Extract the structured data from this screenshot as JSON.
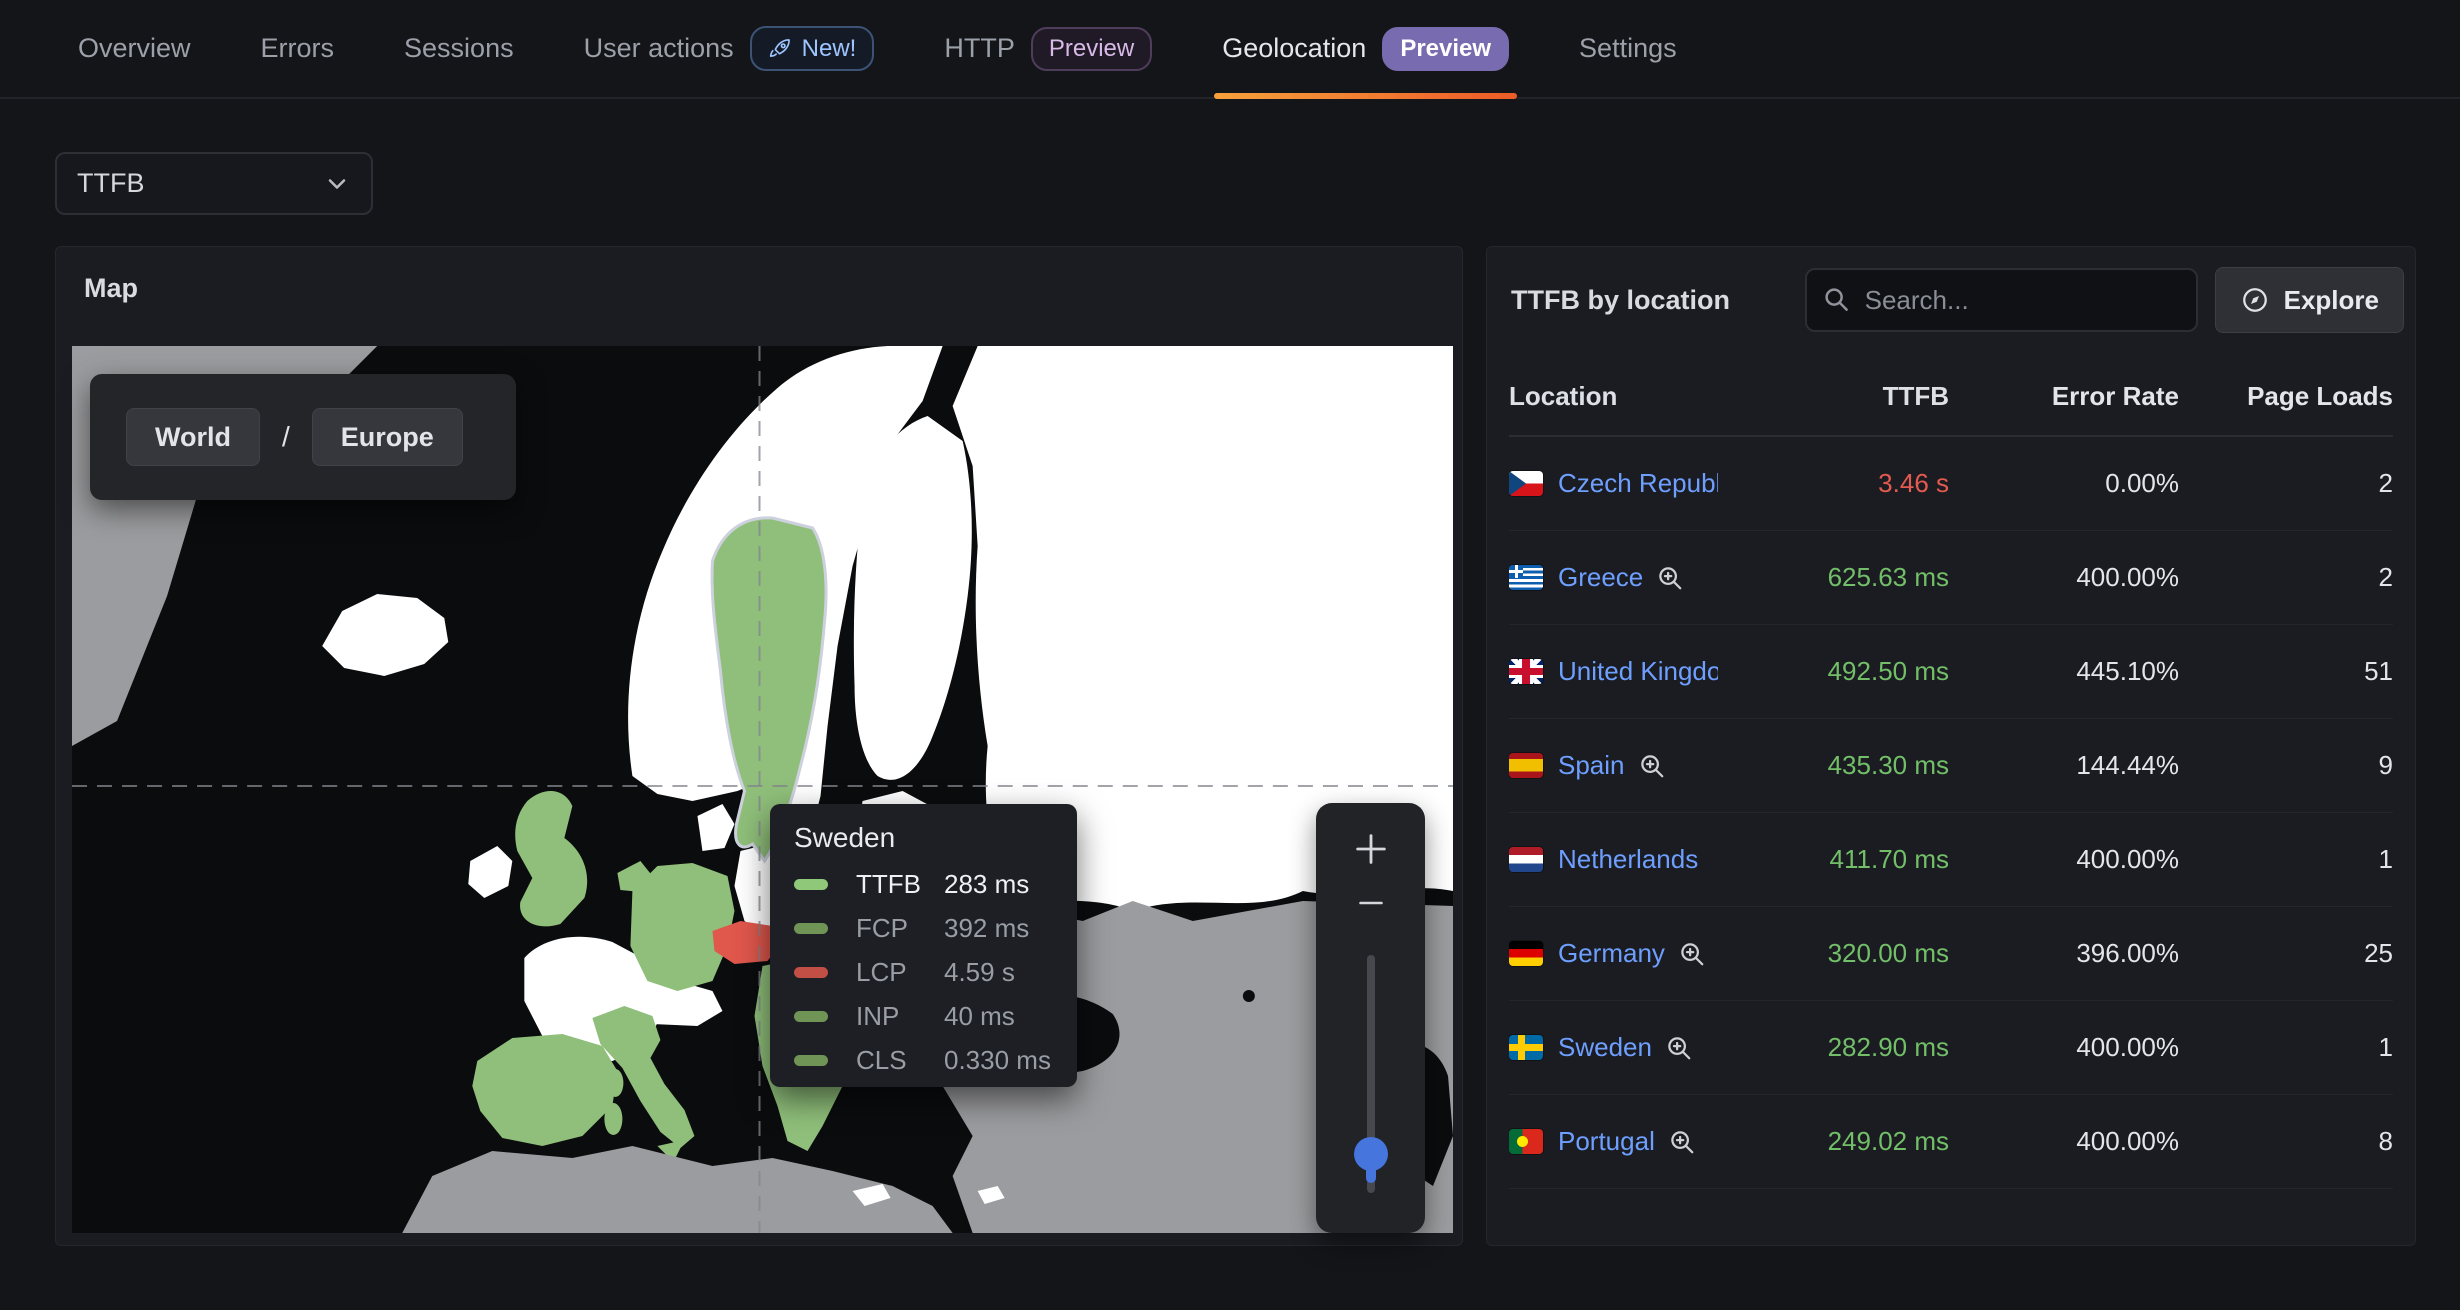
{
  "nav": {
    "tabs": [
      {
        "label": "Overview"
      },
      {
        "label": "Errors"
      },
      {
        "label": "Sessions"
      },
      {
        "label": "User actions",
        "badge": {
          "text": "New!",
          "style": "new",
          "icon": "rocket-icon"
        }
      },
      {
        "label": "HTTP",
        "badge": {
          "text": "Preview",
          "style": "preview-outline"
        }
      },
      {
        "label": "Geolocation",
        "badge": {
          "text": "Preview",
          "style": "preview-filled"
        },
        "active": true
      },
      {
        "label": "Settings"
      }
    ]
  },
  "filters": {
    "metric_select": {
      "value": "TTFB"
    }
  },
  "map_panel": {
    "title": "Map",
    "breadcrumb": {
      "items": [
        "World",
        "Europe"
      ],
      "separator": "/"
    },
    "tooltip": {
      "title": "Sweden",
      "metrics": [
        {
          "label": "TTFB",
          "value": "283 ms",
          "color": "#8ec878",
          "highlight": true
        },
        {
          "label": "FCP",
          "value": "392 ms",
          "color": "#6f9456",
          "highlight": false
        },
        {
          "label": "LCP",
          "value": "4.59 s",
          "color": "#c14f45",
          "highlight": false
        },
        {
          "label": "INP",
          "value": "40 ms",
          "color": "#6f9456",
          "highlight": false
        },
        {
          "label": "CLS",
          "value": "0.330 ms",
          "color": "#6f9456",
          "highlight": false
        }
      ]
    },
    "zoom_control": {
      "zoom_in": "+",
      "zoom_out": "−"
    }
  },
  "location_panel": {
    "title": "TTFB by location",
    "search": {
      "placeholder": "Search..."
    },
    "explore_button": {
      "label": "Explore",
      "icon": "compass-icon"
    },
    "table": {
      "columns": [
        "Location",
        "TTFB",
        "Error Rate",
        "Page Loads"
      ],
      "rows": [
        {
          "flag": "cz",
          "location": "Czech Republic",
          "ttfb": "3.46 s",
          "ttfb_color_key": "red",
          "error_rate": "0.00%",
          "page_loads": "2",
          "zoom_icon": false
        },
        {
          "flag": "gr",
          "location": "Greece",
          "ttfb": "625.63 ms",
          "ttfb_color_key": "green",
          "error_rate": "400.00%",
          "page_loads": "2",
          "zoom_icon": true
        },
        {
          "flag": "gb",
          "location": "United Kingdom",
          "ttfb": "492.50 ms",
          "ttfb_color_key": "green",
          "error_rate": "445.10%",
          "page_loads": "51",
          "zoom_icon": false
        },
        {
          "flag": "es",
          "location": "Spain",
          "ttfb": "435.30 ms",
          "ttfb_color_key": "green",
          "error_rate": "144.44%",
          "page_loads": "9",
          "zoom_icon": true
        },
        {
          "flag": "nl",
          "location": "Netherlands",
          "ttfb": "411.70 ms",
          "ttfb_color_key": "green",
          "error_rate": "400.00%",
          "page_loads": "1",
          "zoom_icon": false
        },
        {
          "flag": "de",
          "location": "Germany",
          "ttfb": "320.00 ms",
          "ttfb_color_key": "green",
          "error_rate": "396.00%",
          "page_loads": "25",
          "zoom_icon": true
        },
        {
          "flag": "se",
          "location": "Sweden",
          "ttfb": "282.90 ms",
          "ttfb_color_key": "green",
          "error_rate": "400.00%",
          "page_loads": "1",
          "zoom_icon": true
        },
        {
          "flag": "pt",
          "location": "Portugal",
          "ttfb": "249.02 ms",
          "ttfb_color_key": "green",
          "error_rate": "400.00%",
          "page_loads": "8",
          "zoom_icon": true
        }
      ]
    }
  },
  "colors": {
    "green": "#73bf69",
    "red": "#e45a4f",
    "link_blue": "#6e9fff",
    "badge_purple": "#796bb0",
    "tab_underline_start": "#f7a13b",
    "tab_underline_end": "#ec5b28",
    "map_green": "#8fbf7a",
    "map_red": "#e0574c",
    "map_gray": "#9b9c9f",
    "map_nodata": "#ffffff",
    "map_sea": "#0b0c0e"
  }
}
